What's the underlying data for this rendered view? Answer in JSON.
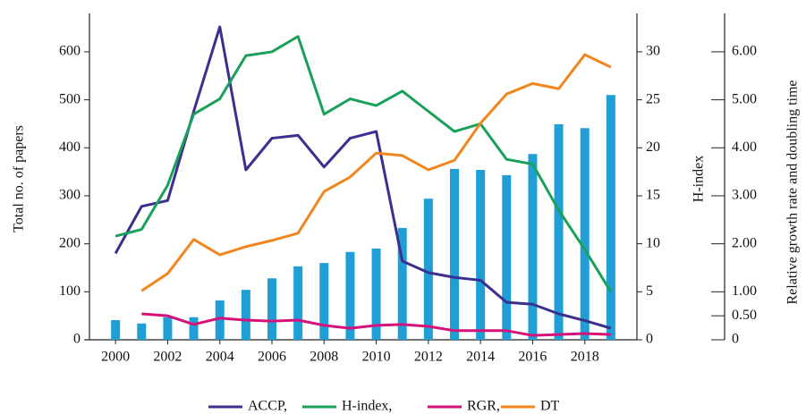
{
  "chart_data": {
    "type": "bar",
    "x": [
      2000,
      2001,
      2002,
      2003,
      2004,
      2005,
      2006,
      2007,
      2008,
      2009,
      2010,
      2011,
      2012,
      2013,
      2014,
      2015,
      2016,
      2017,
      2018,
      2019
    ],
    "xlim": [
      1999,
      2020
    ],
    "xticks": [
      2000,
      2002,
      2004,
      2006,
      2008,
      2010,
      2012,
      2014,
      2016,
      2018
    ],
    "ylabel": "Total no. of papers",
    "ylim": [
      0,
      680
    ],
    "yticks": [
      0,
      100,
      200,
      300,
      400,
      500,
      600
    ],
    "y2label": "H-index",
    "y2lim": [
      0,
      34
    ],
    "y2ticks": [
      0,
      5,
      10,
      15,
      20,
      25,
      30
    ],
    "y3label": "Relative growth rate and doubling time",
    "y3lim": [
      0,
      6.8
    ],
    "y3ticks": [
      0,
      {
        "value": 0.5,
        "label": "0.50"
      },
      {
        "value": 1,
        "label": "1.00"
      },
      {
        "value": 2,
        "label": "2.00"
      },
      {
        "value": 3,
        "label": "3.00"
      },
      {
        "value": 4,
        "label": "4.00"
      },
      {
        "value": 5,
        "label": "5.00"
      },
      {
        "value": 6,
        "label": "6.00"
      }
    ],
    "series": [
      {
        "type": "bar",
        "color": "#1f9fd6",
        "axis": "y",
        "values": [
          41,
          34,
          47,
          47,
          82,
          104,
          128,
          153,
          160,
          183,
          190,
          233,
          294,
          356,
          354,
          343,
          387,
          449,
          441,
          510
        ]
      },
      {
        "type": "line",
        "name": "ACCP,",
        "color": "#3b2f8f",
        "axis": "y2",
        "values": [
          9.0,
          13.9,
          14.5,
          23.8,
          32.6,
          17.7,
          21.0,
          21.3,
          18.0,
          21.0,
          21.7,
          8.2,
          7.0,
          6.5,
          6.2,
          3.9,
          3.7,
          2.7,
          2.0,
          1.2
        ]
      },
      {
        "type": "line",
        "name": "H-index,",
        "color": "#1aa05a",
        "axis": "y2",
        "values": [
          10.8,
          11.5,
          16.1,
          23.5,
          25.1,
          29.6,
          30.0,
          31.6,
          23.5,
          25.1,
          24.4,
          25.9,
          23.8,
          21.7,
          22.5,
          18.8,
          18.3,
          13.5,
          9.4,
          5.0
        ]
      },
      {
        "type": "line",
        "name": "RGR,",
        "color": "#d6127a",
        "axis": "y3",
        "values": [
          null,
          0.54,
          0.5,
          0.32,
          0.45,
          0.41,
          0.39,
          0.41,
          0.3,
          0.24,
          0.3,
          0.32,
          0.28,
          0.19,
          0.19,
          0.19,
          0.09,
          0.11,
          0.13,
          0.11
        ]
      },
      {
        "type": "line",
        "name": "DT",
        "color": "#f0861d",
        "axis": "y3",
        "values": [
          null,
          1.02,
          1.38,
          2.09,
          1.77,
          1.94,
          2.07,
          2.22,
          3.09,
          3.39,
          3.89,
          3.84,
          3.54,
          3.74,
          4.51,
          5.12,
          5.34,
          5.23,
          5.94,
          5.68
        ]
      }
    ]
  }
}
